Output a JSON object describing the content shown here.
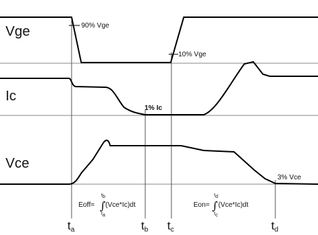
{
  "signals": {
    "vge": "Vge",
    "ic": "Ic",
    "vce": "Vce"
  },
  "annotations": {
    "vge_90": "90% Vge",
    "vge_10": "10% Vge",
    "ic_1": "1% Ic",
    "vce_3": "3% Vce"
  },
  "equations": {
    "eoff": {
      "lhs": "Eoff=",
      "integrand": "(Vce*Ic)dt",
      "upper": "t",
      "upper_sub": "b",
      "lower": "t",
      "lower_sub": "a"
    },
    "eon": {
      "lhs": "Eon=",
      "integrand": "(Vce*Ic)dt",
      "upper": "t",
      "upper_sub": "d",
      "lower": "t",
      "lower_sub": "c"
    }
  },
  "time_markers": [
    {
      "base": "t",
      "sub": "a"
    },
    {
      "base": "t",
      "sub": "b"
    },
    {
      "base": "t",
      "sub": "c"
    },
    {
      "base": "t",
      "sub": "d"
    }
  ],
  "colors": {
    "waveform": "#000000",
    "reference_line": "#8a8a8a",
    "marker_line": "#555555",
    "text": "#111111"
  }
}
